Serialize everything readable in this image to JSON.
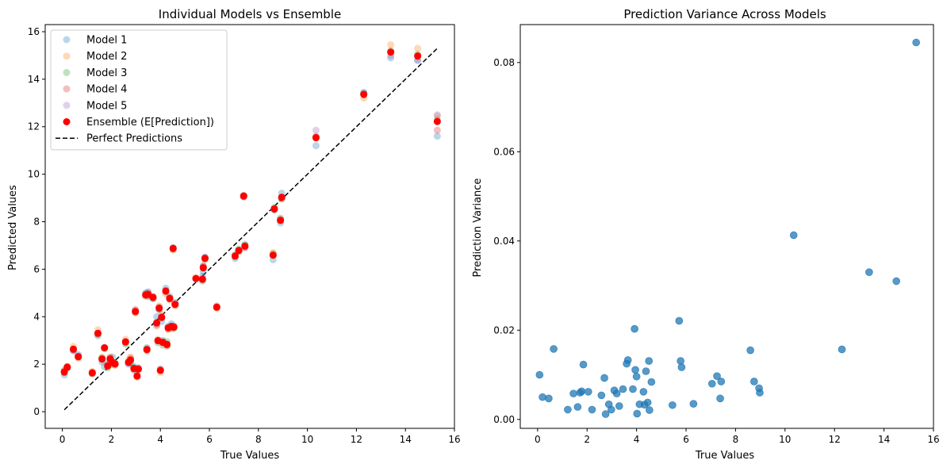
{
  "chart_data": [
    {
      "type": "scatter",
      "title": "Individual Models vs Ensemble",
      "xlabel": "True Values",
      "ylabel": "Predicted Values",
      "xlim": [
        -0.7,
        16.0
      ],
      "ylim": [
        -0.7,
        16.3
      ],
      "xticks": [
        0,
        2,
        4,
        6,
        8,
        10,
        12,
        14,
        16
      ],
      "yticks": [
        0,
        2,
        4,
        6,
        8,
        10,
        12,
        14,
        16
      ],
      "grid": false,
      "legend_position": "top-left",
      "true_values": [
        0.08,
        0.2,
        0.45,
        0.65,
        1.22,
        1.45,
        1.62,
        1.72,
        1.85,
        1.95,
        2.05,
        2.15,
        2.58,
        2.7,
        2.78,
        2.92,
        2.98,
        3.05,
        3.1,
        3.4,
        3.45,
        3.5,
        3.7,
        3.85,
        3.9,
        3.95,
        4.0,
        4.05,
        4.1,
        4.22,
        4.27,
        4.32,
        4.38,
        4.45,
        4.52,
        4.55,
        4.6,
        5.45,
        5.72,
        5.75,
        5.82,
        6.3,
        7.05,
        7.2,
        7.4,
        7.45,
        8.6,
        8.65,
        8.9,
        8.95,
        10.35,
        12.3,
        13.4,
        14.5,
        15.3
      ],
      "series": [
        {
          "name": "Model 1",
          "color": "#1f77b4",
          "values": [
            1.55,
            1.85,
            2.6,
            2.4,
            1.65,
            3.2,
            2.1,
            1.9,
            2.0,
            2.1,
            2.3,
            2.0,
            2.9,
            2.0,
            2.15,
            1.9,
            4.25,
            1.55,
            1.85,
            5.0,
            2.7,
            5.05,
            4.75,
            4.0,
            3.0,
            4.3,
            1.75,
            3.8,
            3.0,
            5.2,
            2.8,
            3.6,
            4.85,
            3.7,
            6.9,
            3.6,
            4.6,
            5.6,
            5.7,
            5.9,
            6.5,
            4.4,
            6.45,
            6.8,
            9.05,
            7.0,
            6.4,
            8.5,
            7.95,
            9.2,
            11.2,
            13.45,
            14.9,
            14.8,
            11.6
          ]
        },
        {
          "name": "Model 2",
          "color": "#ff7f0e",
          "values": [
            1.7,
            1.9,
            2.75,
            2.25,
            1.7,
            3.45,
            2.3,
            2.7,
            1.95,
            2.25,
            2.05,
            1.95,
            3.05,
            2.15,
            2.3,
            1.8,
            4.15,
            1.45,
            1.75,
            4.85,
            2.55,
            4.9,
            4.85,
            3.6,
            3.05,
            4.45,
            1.65,
            4.1,
            2.95,
            4.95,
            2.75,
            3.45,
            4.7,
            3.5,
            6.8,
            3.55,
            4.45,
            5.65,
            5.55,
            6.05,
            6.45,
            4.35,
            6.55,
            6.75,
            9.1,
            6.95,
            6.7,
            8.55,
            8.05,
            9.0,
            11.5,
            13.2,
            15.45,
            15.3,
            12.45
          ]
        },
        {
          "name": "Model 3",
          "color": "#2ca02c",
          "values": [
            1.65,
            1.85,
            2.6,
            2.3,
            1.6,
            3.25,
            2.25,
            2.65,
            1.85,
            2.25,
            2.0,
            2.05,
            2.85,
            2.1,
            2.05,
            1.85,
            4.2,
            1.5,
            1.8,
            4.9,
            2.65,
            4.85,
            4.8,
            3.75,
            2.9,
            4.35,
            1.75,
            3.95,
            2.8,
            5.1,
            2.95,
            3.55,
            4.75,
            3.6,
            6.85,
            3.5,
            4.5,
            5.6,
            5.5,
            6.1,
            6.4,
            4.4,
            6.6,
            6.85,
            9.1,
            7.05,
            6.65,
            8.6,
            8.15,
            8.95,
            11.55,
            13.4,
            15.2,
            15.05,
            12.3
          ]
        },
        {
          "name": "Model 4",
          "color": "#d62728",
          "values": [
            1.75,
            1.9,
            2.65,
            2.3,
            1.6,
            3.3,
            2.2,
            2.7,
            1.9,
            2.3,
            2.05,
            2.0,
            2.95,
            2.05,
            2.25,
            1.75,
            4.3,
            1.5,
            1.8,
            4.95,
            2.6,
            5.0,
            4.85,
            3.7,
            3.0,
            4.4,
            1.8,
            4.0,
            2.9,
            5.05,
            2.85,
            3.5,
            4.8,
            3.55,
            6.9,
            3.6,
            4.55,
            5.6,
            5.6,
            6.15,
            6.45,
            4.45,
            6.55,
            6.75,
            9.05,
            6.9,
            6.6,
            8.5,
            8.1,
            9.0,
            11.6,
            13.35,
            15.15,
            14.95,
            11.85
          ]
        },
        {
          "name": "Model 5",
          "color": "#9467bd",
          "values": [
            1.7,
            1.9,
            2.55,
            2.35,
            1.65,
            3.3,
            2.25,
            2.7,
            1.95,
            2.2,
            2.0,
            2.05,
            2.95,
            2.1,
            2.15,
            1.8,
            4.2,
            1.5,
            1.8,
            4.9,
            2.6,
            4.9,
            4.8,
            3.65,
            3.0,
            4.3,
            1.75,
            4.0,
            2.95,
            5.1,
            2.8,
            3.55,
            4.75,
            3.6,
            6.9,
            3.55,
            4.5,
            5.6,
            5.55,
            6.1,
            6.5,
            4.4,
            6.6,
            6.8,
            9.1,
            6.95,
            6.6,
            8.55,
            8.05,
            9.0,
            11.85,
            13.4,
            15.0,
            14.8,
            12.5
          ]
        },
        {
          "name": "Ensemble (E[Prediction])",
          "color": "#ff0000",
          "values": [
            1.67,
            1.87,
            2.63,
            2.32,
            1.64,
            3.3,
            2.22,
            2.69,
            1.93,
            2.22,
            2.08,
            2.01,
            2.94,
            2.08,
            2.18,
            1.82,
            4.22,
            1.5,
            1.8,
            4.92,
            2.62,
            4.94,
            4.81,
            3.74,
            2.99,
            4.36,
            1.74,
            3.97,
            2.92,
            5.08,
            2.83,
            3.53,
            4.77,
            3.59,
            6.87,
            3.56,
            4.52,
            5.61,
            5.58,
            6.06,
            6.46,
            4.4,
            6.55,
            6.79,
            9.08,
            6.97,
            6.59,
            8.54,
            8.06,
            9.03,
            11.54,
            13.36,
            15.14,
            14.98,
            12.22
          ]
        }
      ],
      "reference_line": {
        "name": "Perfect Predictions",
        "style": "dashed",
        "color": "#000000",
        "x": [
          0.08,
          15.3
        ],
        "y": [
          0.08,
          15.3
        ]
      }
    },
    {
      "type": "scatter",
      "title": "Prediction Variance Across Models",
      "xlabel": "True Values",
      "ylabel": "Prediction Variance",
      "xlim": [
        -0.7,
        16.0
      ],
      "ylim": [
        -0.002,
        0.0885
      ],
      "xticks": [
        0,
        2,
        4,
        6,
        8,
        10,
        12,
        14,
        16
      ],
      "yticks": [
        0.0,
        0.02,
        0.04,
        0.06,
        0.08
      ],
      "ytick_labels": [
        "0.00",
        "0.02",
        "0.04",
        "0.06",
        "0.08"
      ],
      "grid": false,
      "color": "#1f77b4",
      "x": [
        0.08,
        0.2,
        0.45,
        0.65,
        1.22,
        1.45,
        1.62,
        1.72,
        1.78,
        1.85,
        2.05,
        2.2,
        2.58,
        2.7,
        2.75,
        2.88,
        2.98,
        3.1,
        3.2,
        3.3,
        3.45,
        3.6,
        3.65,
        3.85,
        3.92,
        3.95,
        4.0,
        4.02,
        4.12,
        4.28,
        4.32,
        4.38,
        4.45,
        4.5,
        4.52,
        4.6,
        5.45,
        5.72,
        5.78,
        5.82,
        6.3,
        7.05,
        7.25,
        7.38,
        7.42,
        8.6,
        8.75,
        8.95,
        8.98,
        10.35,
        12.3,
        13.4,
        14.5,
        15.3
      ],
      "y": [
        0.01,
        0.005,
        0.0047,
        0.0158,
        0.0022,
        0.0058,
        0.0028,
        0.006,
        0.0063,
        0.0123,
        0.0062,
        0.0022,
        0.0054,
        0.0093,
        0.0012,
        0.0034,
        0.0022,
        0.0065,
        0.0058,
        0.003,
        0.0068,
        0.0125,
        0.0133,
        0.0068,
        0.0203,
        0.0111,
        0.0096,
        0.0013,
        0.0034,
        0.0062,
        0.0033,
        0.0108,
        0.0038,
        0.0131,
        0.0021,
        0.0084,
        0.0032,
        0.0221,
        0.0131,
        0.0117,
        0.0035,
        0.008,
        0.0097,
        0.0047,
        0.0085,
        0.0155,
        0.0085,
        0.007,
        0.006,
        0.0413,
        0.0157,
        0.033,
        0.031,
        0.0845
      ]
    }
  ]
}
